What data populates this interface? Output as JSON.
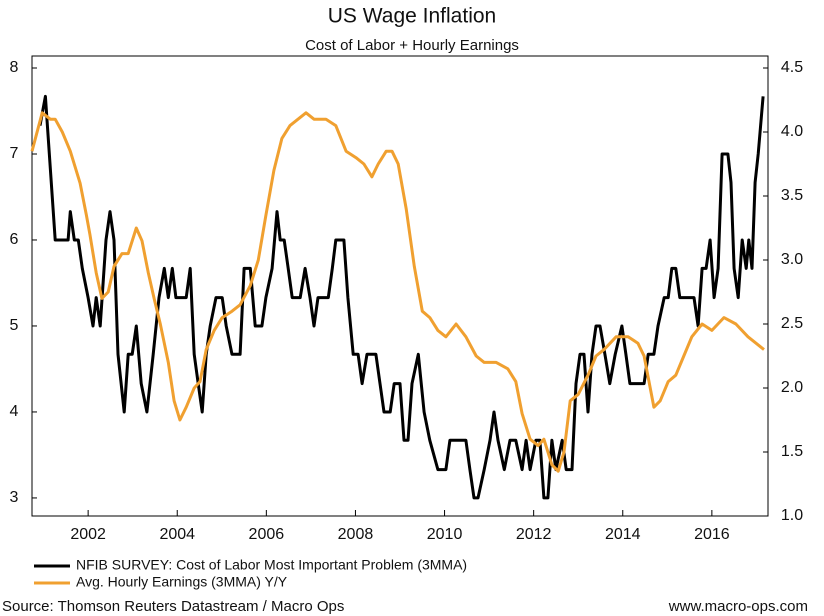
{
  "chart_data": {
    "type": "line",
    "title": "US Wage Inflation",
    "subtitle": "Cost of Labor + Hourly Earnings",
    "source": "Source: Thomson Reuters Datastream / Macro Ops",
    "credit": "www.macro-ops.com",
    "xlim": [
      2000.74,
      2017.26
    ],
    "xticks": [
      2002,
      2004,
      2006,
      2008,
      2010,
      2012,
      2014,
      2016
    ],
    "ylim": [
      2.79,
      8
    ],
    "yticks": [
      3,
      4,
      5,
      6,
      7,
      8
    ],
    "y2lim": [
      1.0,
      4.5
    ],
    "y2ticks": [
      {
        "value": 1.0,
        "label": "1.0"
      },
      1.5,
      {
        "value": 2.0,
        "label": "2.0"
      },
      2.5,
      {
        "value": 3.0,
        "label": "3.0"
      },
      3.5,
      {
        "value": 4.0,
        "label": "4.0"
      },
      4.5
    ],
    "legend": "bottom-left",
    "series": [
      {
        "name": "NFIB SURVEY: Cost of Labor Most Important Problem (3MMA)",
        "color": "#000000",
        "axis": "y",
        "x": [
          2000.92,
          2001.04,
          2001.26,
          2001.55,
          2001.6,
          2001.69,
          2001.78,
          2001.87,
          2002.0,
          2002.11,
          2002.18,
          2002.27,
          2002.4,
          2002.49,
          2002.58,
          2002.67,
          2002.81,
          2002.9,
          2002.99,
          2003.08,
          2003.19,
          2003.32,
          2003.46,
          2003.59,
          2003.71,
          2003.8,
          2003.89,
          2003.97,
          2004.2,
          2004.29,
          2004.38,
          2004.47,
          2004.56,
          2004.65,
          2004.74,
          2004.87,
          2005.01,
          2005.1,
          2005.23,
          2005.41,
          2005.5,
          2005.64,
          2005.75,
          2005.9,
          2005.99,
          2006.13,
          2006.24,
          2006.31,
          2006.4,
          2006.49,
          2006.58,
          2006.76,
          2006.87,
          2006.98,
          2007.07,
          2007.16,
          2007.39,
          2007.48,
          2007.56,
          2007.74,
          2007.83,
          2007.95,
          2008.06,
          2008.15,
          2008.26,
          2008.46,
          2008.55,
          2008.64,
          2008.78,
          2008.87,
          2009.0,
          2009.09,
          2009.18,
          2009.27,
          2009.41,
          2009.54,
          2009.67,
          2009.85,
          2010.03,
          2010.12,
          2010.48,
          2010.57,
          2010.66,
          2010.75,
          2010.89,
          2011.02,
          2011.11,
          2011.2,
          2011.34,
          2011.47,
          2011.6,
          2011.74,
          2011.83,
          2011.92,
          2012.05,
          2012.14,
          2012.23,
          2012.32,
          2012.41,
          2012.5,
          2012.64,
          2012.73,
          2012.86,
          2012.95,
          2013.04,
          2013.13,
          2013.22,
          2013.31,
          2013.4,
          2013.49,
          2013.6,
          2013.71,
          2013.83,
          2013.98,
          2014.07,
          2014.16,
          2014.48,
          2014.57,
          2014.7,
          2014.79,
          2014.93,
          2015.02,
          2015.1,
          2015.19,
          2015.28,
          2015.6,
          2015.69,
          2015.78,
          2015.87,
          2015.96,
          2016.05,
          2016.14,
          2016.23,
          2016.36,
          2016.43,
          2016.5,
          2016.59,
          2016.68,
          2016.77,
          2016.83,
          2016.9,
          2016.97,
          2017.04,
          2017.15
        ],
        "values": [
          7.33,
          7.67,
          6.0,
          6.0,
          6.33,
          6.0,
          6.0,
          5.67,
          5.33,
          5.0,
          5.33,
          5.0,
          6.0,
          6.33,
          6.0,
          4.67,
          4.0,
          4.67,
          4.67,
          5.0,
          4.33,
          4.0,
          4.67,
          5.33,
          5.67,
          5.33,
          5.67,
          5.33,
          5.33,
          5.67,
          4.67,
          4.33,
          4.0,
          4.67,
          5.0,
          5.33,
          5.33,
          5.0,
          4.67,
          4.67,
          5.67,
          5.67,
          5.0,
          5.0,
          5.33,
          5.67,
          6.33,
          6.0,
          6.0,
          5.67,
          5.33,
          5.33,
          5.67,
          5.33,
          5.0,
          5.33,
          5.33,
          5.67,
          6.0,
          6.0,
          5.33,
          4.67,
          4.67,
          4.33,
          4.67,
          4.67,
          4.33,
          4.0,
          4.0,
          4.33,
          4.33,
          3.67,
          3.67,
          4.33,
          4.67,
          4.0,
          3.67,
          3.33,
          3.33,
          3.67,
          3.67,
          3.33,
          3.0,
          3.0,
          3.33,
          3.67,
          4.0,
          3.67,
          3.33,
          3.67,
          3.67,
          3.33,
          3.67,
          3.33,
          3.67,
          3.67,
          3.0,
          3.0,
          3.67,
          3.33,
          3.67,
          3.33,
          3.33,
          4.33,
          4.67,
          4.67,
          4.0,
          4.67,
          5.0,
          5.0,
          4.67,
          4.33,
          4.67,
          5.0,
          4.67,
          4.33,
          4.33,
          4.67,
          4.67,
          5.0,
          5.33,
          5.33,
          5.67,
          5.67,
          5.33,
          5.33,
          5.0,
          5.67,
          5.67,
          6.0,
          5.33,
          5.67,
          7.0,
          7.0,
          6.67,
          5.67,
          5.33,
          6.0,
          5.67,
          6.0,
          5.67,
          6.67,
          7.0,
          7.67
        ]
      },
      {
        "name": "Avg. Hourly Earnings (3MMA) Y/Y",
        "color": "#f0a030",
        "axis": "y2",
        "x": [
          2000.74,
          2000.97,
          2001.15,
          2001.26,
          2001.42,
          2001.6,
          2001.82,
          2001.96,
          2002.04,
          2002.18,
          2002.31,
          2002.45,
          2002.58,
          2002.76,
          2002.9,
          2003.08,
          2003.21,
          2003.35,
          2003.48,
          2003.62,
          2003.8,
          2003.93,
          2004.06,
          2004.2,
          2004.38,
          2004.51,
          2004.65,
          2004.83,
          2005.01,
          2005.23,
          2005.41,
          2005.64,
          2005.82,
          2005.99,
          2006.17,
          2006.35,
          2006.53,
          2006.71,
          2006.89,
          2007.07,
          2007.34,
          2007.56,
          2007.79,
          2008.01,
          2008.19,
          2008.37,
          2008.51,
          2008.69,
          2008.82,
          2008.96,
          2009.14,
          2009.32,
          2009.5,
          2009.67,
          2009.85,
          2010.03,
          2010.26,
          2010.48,
          2010.71,
          2010.89,
          2011.16,
          2011.42,
          2011.6,
          2011.74,
          2011.92,
          2012.1,
          2012.23,
          2012.41,
          2012.55,
          2012.68,
          2012.82,
          2013.0,
          2013.22,
          2013.4,
          2013.58,
          2013.85,
          2014.12,
          2014.34,
          2014.48,
          2014.7,
          2014.84,
          2015.02,
          2015.19,
          2015.37,
          2015.55,
          2015.78,
          2016.0,
          2016.27,
          2016.54,
          2016.81,
          2016.99,
          2017.17
        ],
        "values": [
          3.85,
          4.15,
          4.1,
          4.1,
          4.0,
          3.85,
          3.6,
          3.35,
          3.2,
          2.9,
          2.7,
          2.75,
          2.95,
          3.05,
          3.05,
          3.25,
          3.15,
          2.9,
          2.7,
          2.5,
          2.2,
          1.9,
          1.75,
          1.85,
          2.0,
          2.05,
          2.3,
          2.45,
          2.55,
          2.6,
          2.65,
          2.8,
          3.0,
          3.35,
          3.7,
          3.95,
          4.05,
          4.1,
          4.15,
          4.1,
          4.1,
          4.05,
          3.85,
          3.8,
          3.75,
          3.65,
          3.75,
          3.85,
          3.85,
          3.75,
          3.4,
          2.95,
          2.6,
          2.55,
          2.45,
          2.4,
          2.5,
          2.4,
          2.25,
          2.2,
          2.2,
          2.15,
          2.05,
          1.8,
          1.6,
          1.55,
          1.6,
          1.4,
          1.35,
          1.5,
          1.9,
          1.95,
          2.1,
          2.25,
          2.3,
          2.4,
          2.4,
          2.35,
          2.25,
          1.85,
          1.9,
          2.05,
          2.1,
          2.25,
          2.4,
          2.5,
          2.45,
          2.55,
          2.5,
          2.4,
          2.35,
          2.3
        ]
      }
    ]
  }
}
